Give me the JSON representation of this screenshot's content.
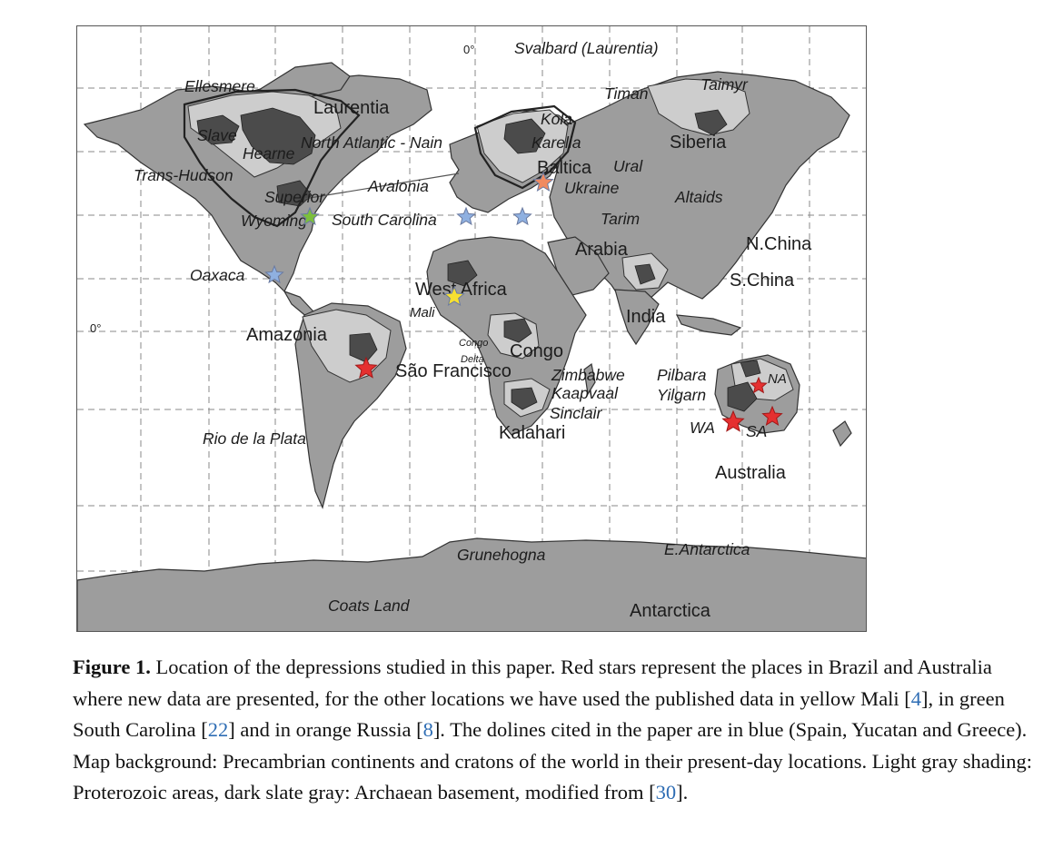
{
  "figure": {
    "map_labels": {
      "zero_lon": "0°",
      "zero_lat": "0°",
      "svalbard": "Svalbard (Laurentia)",
      "ellesmere": "Ellesmere",
      "laurentia": "Laurentia",
      "slave": "Slave",
      "hearne": "Hearne",
      "north_atlantic": "North Atlantic - Nain",
      "trans_hudson": "Trans-Hudson",
      "superior": "Superior",
      "avalonia": "Avalonia",
      "wyoming": "Wyoming",
      "south_carolina": "South Carolina",
      "oaxaca": "Oaxaca",
      "amazonia": "Amazonia",
      "sao_francisco": "São Francisco",
      "rio_de_la_plata": "Rio de la Plata",
      "timan": "Timan",
      "taimyr": "Taimyr",
      "kola": "Kola",
      "karelia": "Karelia",
      "siberia": "Siberia",
      "baltica": "Baltica",
      "ural": "Ural",
      "ukraine": "Ukraine",
      "altaids": "Altaids",
      "tarim": "Tarim",
      "arabia": "Arabia",
      "n_china": "N.China",
      "s_china": "S.China",
      "west_africa": "West Africa",
      "mali": "Mali",
      "india": "India",
      "congo_delta_1": "Congo",
      "congo_delta_2": "Delta",
      "congo": "Congo",
      "zimbabwe": "Zimbabwe",
      "kaapvaal": "Kaapvaal",
      "sinclair": "Sinclair",
      "kalahari": "Kalahari",
      "pilbara": "Pilbara",
      "yilgarn": "Yilgarn",
      "na": "NA",
      "wa": "WA",
      "sa": "SA",
      "australia": "Australia",
      "grunehogna": "Grunehogna",
      "e_antarctica": "E.Antarctica",
      "coats_land": "Coats Land",
      "antarctica": "Antarctica"
    },
    "markers": [
      {
        "name": "Sao Francisco (Brazil)",
        "color": "#e53030"
      },
      {
        "name": "WA (Australia)",
        "color": "#e53030"
      },
      {
        "name": "SA (Australia)",
        "color": "#e53030"
      },
      {
        "name": "NA (Australia)",
        "color": "#e53030"
      },
      {
        "name": "Mali",
        "color": "#f7e030"
      },
      {
        "name": "South Carolina",
        "color": "#7cbf3c"
      },
      {
        "name": "Russia",
        "color": "#f08a60"
      },
      {
        "name": "Spain",
        "color": "#8fb0e0"
      },
      {
        "name": "Greece",
        "color": "#8fb0e0"
      },
      {
        "name": "Yucatan",
        "color": "#8fb0e0"
      }
    ],
    "colors": {
      "continent": "#9d9d9d",
      "proterozoic": "#cdcdcd",
      "archaean": "#4b4b4b"
    }
  },
  "caption": {
    "label": "Figure 1.",
    "t1": " Location of the depressions studied in this paper. Red stars represent the places in Brazil and Australia where new data are presented, for the other locations we have used the published data in yellow Mali [",
    "r1": "4",
    "t2": "], in green South Carolina [",
    "r2": "22",
    "t3": "] and in orange Russia [",
    "r3": "8",
    "t4": "]. The dolines cited in the paper are in blue (Spain, Yucatan and Greece). Map background: Precambrian continents and cratons of the world in their present-day locations. Light gray shading: Proterozoic areas, dark slate gray: Archaean basement, modified from [",
    "r4": "30",
    "t5": "]."
  }
}
